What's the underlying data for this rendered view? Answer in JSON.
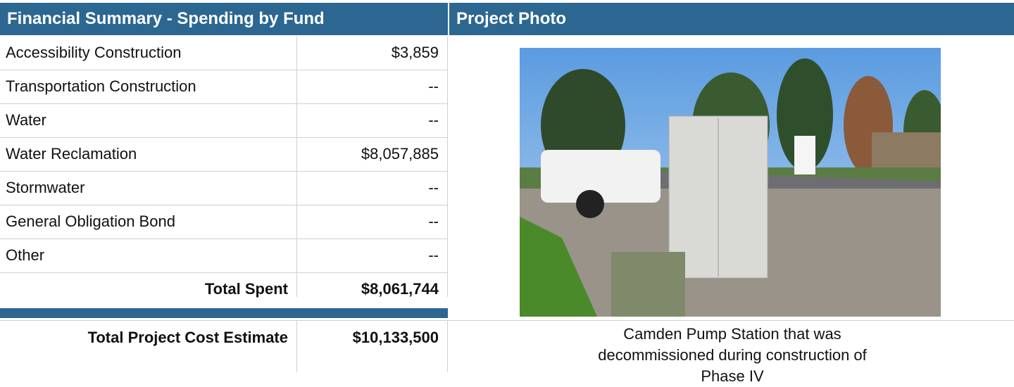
{
  "left_header": {
    "title": "Financial Summary - Spending by Fund"
  },
  "right_header": {
    "title": "Project Photo"
  },
  "table": {
    "rows": [
      [
        "Accessibility Construction",
        "$3,859"
      ],
      [
        "Transportation Construction",
        "--"
      ],
      [
        "Water",
        "--"
      ],
      [
        "Water Reclamation",
        "$8,057,885"
      ],
      [
        "Stormwater",
        "--"
      ],
      [
        "General Obligation Bond",
        "--"
      ],
      [
        "Other",
        "--"
      ]
    ],
    "total_spent": [
      "Total Spent",
      "$8,061,744"
    ],
    "total_cost_estimate": [
      "Total Project Cost Estimate",
      "$10,133,500"
    ]
  },
  "photo": {
    "caption": "Camden Pump Station that was decommissioned during construction of Phase IV"
  }
}
